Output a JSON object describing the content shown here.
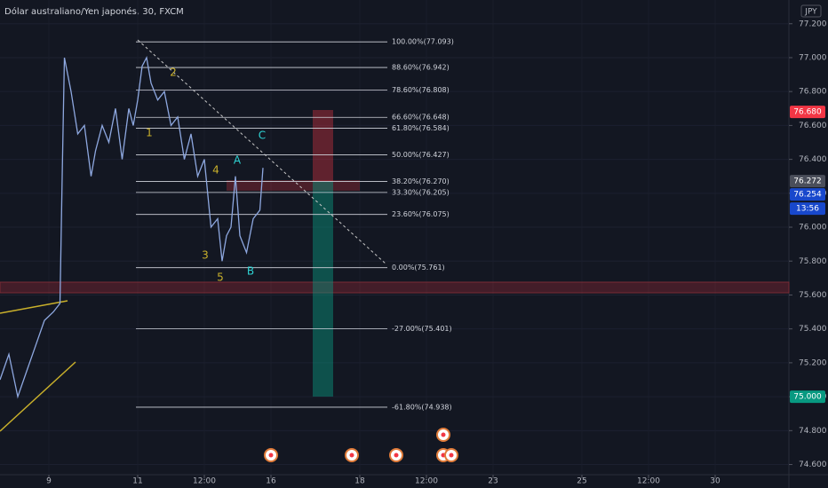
{
  "chart_data": {
    "type": "line",
    "title": "Dólar australiano/Yen japonés, 30, FXCM",
    "currency": "JPY",
    "x": [
      -1.1,
      -0.9,
      -0.7,
      -0.5,
      -0.3,
      -0.1,
      0.1,
      0.25,
      0.3,
      0.35,
      0.5,
      0.65,
      0.8,
      0.95,
      1.05,
      1.2,
      1.35,
      1.5,
      1.65,
      1.8,
      1.9,
      2.0,
      2.1,
      2.2,
      2.3,
      2.45,
      2.6,
      2.75,
      2.9,
      3.05,
      3.2,
      3.35,
      3.5,
      3.65,
      3.8,
      3.9,
      4.0,
      4.1,
      4.2,
      4.3,
      4.45,
      4.6,
      4.75,
      4.82
    ],
    "series": [
      {
        "color": "#8ea8e0",
        "values": [
          75.1,
          75.25,
          75.0,
          75.15,
          75.3,
          75.45,
          75.5,
          75.55,
          76.3,
          77.0,
          76.8,
          76.55,
          76.6,
          76.3,
          76.45,
          76.6,
          76.5,
          76.7,
          76.4,
          76.7,
          76.6,
          76.75,
          76.95,
          77.0,
          76.85,
          76.75,
          76.8,
          76.6,
          76.65,
          76.4,
          76.55,
          76.3,
          76.4,
          76.0,
          76.05,
          75.8,
          75.95,
          76.0,
          76.3,
          75.95,
          75.85,
          76.05,
          76.1,
          76.35
        ]
      }
    ],
    "xlim": [
      -1.1,
      16.66
    ],
    "xticks": [
      {
        "value": 0,
        "label": "9"
      },
      {
        "value": 2,
        "label": "11"
      },
      {
        "value": 3.5,
        "label": "12:00"
      },
      {
        "value": 5,
        "label": "16"
      },
      {
        "value": 7,
        "label": "18"
      },
      {
        "value": 8.5,
        "label": "12:00"
      },
      {
        "value": 10,
        "label": "23"
      },
      {
        "value": 12,
        "label": "25"
      },
      {
        "value": 13.5,
        "label": "12:00"
      },
      {
        "value": 15,
        "label": "30"
      }
    ],
    "ylim": [
      74.54,
      77.34
    ],
    "yticks": [
      {
        "value": 74.6,
        "label": "74.600"
      },
      {
        "value": 74.8,
        "label": "74.800"
      },
      {
        "value": 75.0,
        "label": "75.000"
      },
      {
        "value": 75.2,
        "label": "75.200"
      },
      {
        "value": 75.4,
        "label": "75.400"
      },
      {
        "value": 75.6,
        "label": "75.600"
      },
      {
        "value": 75.8,
        "label": "75.800"
      },
      {
        "value": 76.0,
        "label": "76.000"
      },
      {
        "value": 76.2,
        "label": "76.200"
      },
      {
        "value": 76.4,
        "label": "76.400"
      },
      {
        "value": 76.6,
        "label": "76.600"
      },
      {
        "value": 76.8,
        "label": "76.800"
      },
      {
        "value": 77.0,
        "label": "77.000"
      },
      {
        "value": 77.2,
        "label": "77.200"
      }
    ],
    "fibonacci": [
      {
        "value": 77.093,
        "label": "100.00%(77.093)"
      },
      {
        "value": 76.942,
        "label": "88.60%(76.942)"
      },
      {
        "value": 76.808,
        "label": "78.60%(76.808)"
      },
      {
        "value": 76.648,
        "label": "66.60%(76.648)"
      },
      {
        "value": 76.584,
        "label": "61.80%(76.584)"
      },
      {
        "value": 76.427,
        "label": "50.00%(76.427)"
      },
      {
        "value": 76.27,
        "label": "38.20%(76.270)"
      },
      {
        "value": 76.205,
        "label": "33.30%(76.205)"
      },
      {
        "value": 76.075,
        "label": "23.60%(76.075)"
      },
      {
        "value": 75.761,
        "label": "0.00%(75.761)"
      },
      {
        "value": 75.401,
        "label": "-27.00%(75.401)"
      },
      {
        "value": 74.938,
        "label": "-61.80%(74.938)"
      }
    ],
    "annotations": [
      {
        "text": "1",
        "color": "#c9b02b"
      },
      {
        "text": "2",
        "color": "#c9b02b"
      },
      {
        "text": "3",
        "color": "#c9b02b"
      },
      {
        "text": "4",
        "color": "#c9b02b"
      },
      {
        "text": "5",
        "color": "#c9b02b"
      },
      {
        "text": "A",
        "color": "#2ed3d3"
      },
      {
        "text": "B",
        "color": "#2ed3d3"
      },
      {
        "text": "C",
        "color": "#2ed3d3"
      }
    ],
    "price_labels": [
      {
        "value": 76.68,
        "label": "76.680",
        "color": "#f23645"
      },
      {
        "value": 76.272,
        "label": "76.272",
        "color": "#4a4e5a"
      },
      {
        "value": 76.254,
        "label": "76.254",
        "color": "#1848cc"
      },
      {
        "value": 75.0,
        "label": "75.000",
        "color": "#089981"
      }
    ],
    "countdown": "13:56"
  }
}
